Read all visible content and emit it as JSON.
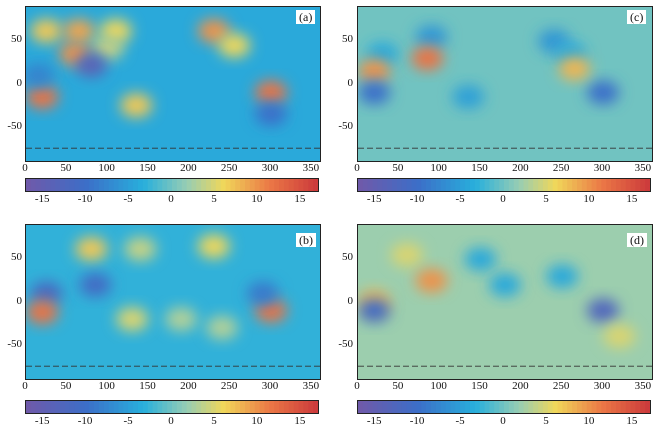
{
  "chart_data": [
    {
      "type": "heatmap",
      "panel_label": "(a)",
      "x_ticks": [
        "0",
        "50",
        "100",
        "150",
        "200",
        "250",
        "300",
        "350"
      ],
      "y_ticks": [
        "50",
        "0",
        "-50"
      ],
      "xlim": [
        0,
        360
      ],
      "ylim": [
        -90,
        90
      ],
      "colorbar_ticks": [
        "-15",
        "-10",
        "-5",
        "0",
        "5",
        "10",
        "15"
      ],
      "colorbar_range": [
        -17,
        17
      ],
      "background_value": -4,
      "anomalies": [
        {
          "lon": 25,
          "lat": 62,
          "value": 7
        },
        {
          "lon": 65,
          "lat": 62,
          "value": 9
        },
        {
          "lon": 110,
          "lat": 62,
          "value": 6
        },
        {
          "lon": 100,
          "lat": 42,
          "value": 4
        },
        {
          "lon": 60,
          "lat": 35,
          "value": 10
        },
        {
          "lon": 20,
          "lat": -15,
          "value": 12
        },
        {
          "lon": 80,
          "lat": 22,
          "value": -14
        },
        {
          "lon": 135,
          "lat": -25,
          "value": 7
        },
        {
          "lon": 230,
          "lat": 62,
          "value": 10
        },
        {
          "lon": 255,
          "lat": 45,
          "value": 6
        },
        {
          "lon": 300,
          "lat": -10,
          "value": 12
        },
        {
          "lon": 300,
          "lat": -35,
          "value": -10
        },
        {
          "lon": 15,
          "lat": 10,
          "value": -8
        }
      ]
    },
    {
      "type": "heatmap",
      "panel_label": "(b)",
      "x_ticks": [
        "0",
        "50",
        "100",
        "150",
        "200",
        "250",
        "300",
        "350"
      ],
      "y_ticks": [
        "50",
        "0",
        "-50"
      ],
      "xlim": [
        0,
        360
      ],
      "ylim": [
        -90,
        90
      ],
      "colorbar_ticks": [
        "-15",
        "-10",
        "-5",
        "0",
        "5",
        "10",
        "15"
      ],
      "colorbar_range": [
        -17,
        17
      ],
      "background_value": -3,
      "anomalies": [
        {
          "lon": 80,
          "lat": 62,
          "value": 7
        },
        {
          "lon": 140,
          "lat": 62,
          "value": 4
        },
        {
          "lon": 230,
          "lat": 65,
          "value": 6
        },
        {
          "lon": 25,
          "lat": 10,
          "value": -12
        },
        {
          "lon": 85,
          "lat": 20,
          "value": -11
        },
        {
          "lon": 20,
          "lat": -12,
          "value": 12
        },
        {
          "lon": 130,
          "lat": -20,
          "value": 5
        },
        {
          "lon": 300,
          "lat": -10,
          "value": 12
        },
        {
          "lon": 290,
          "lat": 10,
          "value": -9
        },
        {
          "lon": 190,
          "lat": -20,
          "value": 3
        },
        {
          "lon": 240,
          "lat": -30,
          "value": 3
        }
      ]
    },
    {
      "type": "heatmap",
      "panel_label": "(c)",
      "x_ticks": [
        "0",
        "50",
        "100",
        "150",
        "200",
        "250",
        "300",
        "350"
      ],
      "y_ticks": [
        "50",
        "0",
        "-50"
      ],
      "xlim": [
        0,
        360
      ],
      "ylim": [
        -90,
        90
      ],
      "colorbar_ticks": [
        "-15",
        "-10",
        "-5",
        "0",
        "5",
        "10",
        "15"
      ],
      "colorbar_range": [
        -17,
        17
      ],
      "background_value": 0,
      "anomalies": [
        {
          "lon": 90,
          "lat": 55,
          "value": -6
        },
        {
          "lon": 30,
          "lat": 35,
          "value": -4
        },
        {
          "lon": 20,
          "lat": 15,
          "value": 10
        },
        {
          "lon": 85,
          "lat": 30,
          "value": 12
        },
        {
          "lon": 20,
          "lat": -10,
          "value": -10
        },
        {
          "lon": 135,
          "lat": -15,
          "value": -5
        },
        {
          "lon": 240,
          "lat": 50,
          "value": -6
        },
        {
          "lon": 260,
          "lat": 35,
          "value": -4
        },
        {
          "lon": 300,
          "lat": -10,
          "value": -10
        },
        {
          "lon": 265,
          "lat": 18,
          "value": 8
        }
      ]
    },
    {
      "type": "heatmap",
      "panel_label": "(d)",
      "x_ticks": [
        "0",
        "50",
        "100",
        "150",
        "200",
        "250",
        "300",
        "350"
      ],
      "y_ticks": [
        "50",
        "0",
        "-50"
      ],
      "xlim": [
        0,
        360
      ],
      "ylim": [
        -90,
        90
      ],
      "colorbar_ticks": [
        "-15",
        "-10",
        "-5",
        "0",
        "5",
        "10",
        "15"
      ],
      "colorbar_range": [
        -17,
        17
      ],
      "background_value": 2,
      "anomalies": [
        {
          "lon": 60,
          "lat": 55,
          "value": 5
        },
        {
          "lon": 90,
          "lat": 25,
          "value": 10
        },
        {
          "lon": 20,
          "lat": 0,
          "value": 8
        },
        {
          "lon": 20,
          "lat": -10,
          "value": -11
        },
        {
          "lon": 250,
          "lat": 30,
          "value": -4
        },
        {
          "lon": 300,
          "lat": -10,
          "value": -13
        },
        {
          "lon": 320,
          "lat": -40,
          "value": 5
        },
        {
          "lon": 150,
          "lat": 50,
          "value": -4
        },
        {
          "lon": 180,
          "lat": 20,
          "value": -4
        }
      ]
    }
  ]
}
